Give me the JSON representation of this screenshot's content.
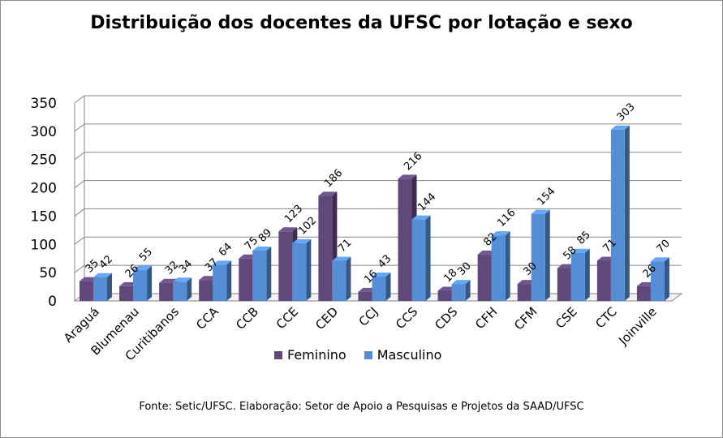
{
  "chart_data": {
    "type": "bar",
    "title": "Distribuição dos docentes da UFSC por lotação e sexo",
    "source": "Fonte: Setic/UFSC. Elaboração: Setor de Apoio a Pesquisas e Projetos da SAAD/UFSC",
    "categories": [
      "Araguá",
      "Blumenau",
      "Curitibanos",
      "CCA",
      "CCB",
      "CCE",
      "CED",
      "CCJ",
      "CCS",
      "CDS",
      "CFH",
      "CFM",
      "CSE",
      "CTC",
      "Joinville"
    ],
    "series": [
      {
        "name": "Feminino",
        "color": "#60497a",
        "values": [
          35,
          26,
          32,
          37,
          75,
          123,
          186,
          16,
          216,
          18,
          82,
          30,
          58,
          71,
          26
        ]
      },
      {
        "name": "Masculino",
        "color": "#558ed5",
        "values": [
          42,
          55,
          34,
          64,
          89,
          102,
          71,
          43,
          144,
          30,
          116,
          154,
          85,
          303,
          70
        ]
      }
    ],
    "y_ticks": [
      "0",
      "50",
      "100",
      "150",
      "200",
      "250",
      "300",
      "350"
    ],
    "ylim": [
      0,
      350
    ],
    "grid": true,
    "legend_position": "bottom"
  }
}
